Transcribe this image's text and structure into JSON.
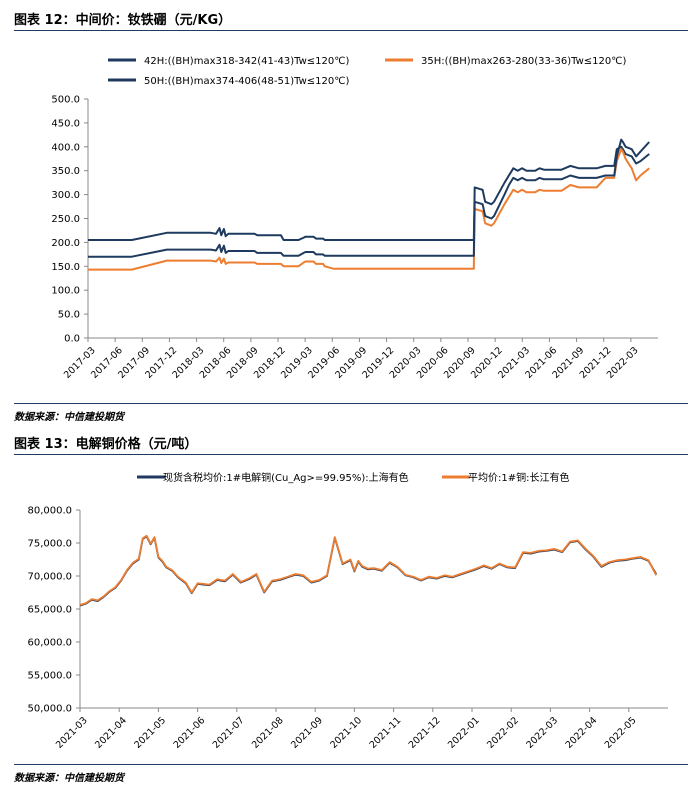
{
  "figure12": {
    "title": "图表 12：中间价：钕铁硼（元/KG）",
    "source": "数据来源：中信建投期货"
  },
  "figure13": {
    "title": "图表 13：电解铜价格（元/吨）",
    "source": "数据来源：中信建投期货"
  },
  "colors": {
    "navy": "#1f3a5f",
    "orange": "#ed7d31",
    "axis": "#888888"
  },
  "chart_data": [
    {
      "type": "line",
      "title": "中间价：钕铁硼（元/KG）",
      "ylim": [
        0,
        500
      ],
      "yticks": [
        0,
        50,
        100,
        150,
        200,
        250,
        300,
        350,
        400,
        450,
        500
      ],
      "ytick_labels": [
        "0.0",
        "50.0",
        "100.0",
        "150.0",
        "200.0",
        "250.0",
        "300.0",
        "350.0",
        "400.0",
        "450.0",
        "500.0"
      ],
      "xlim": [
        0,
        65
      ],
      "x_tick_labels": [
        "2017-03",
        "2017-06",
        "2017-09",
        "2017-12",
        "2018-03",
        "2018-06",
        "2018-09",
        "2018-12",
        "2019-03",
        "2019-06",
        "2019-09",
        "2019-12",
        "2020-03",
        "2020-06",
        "2020-09",
        "2020-12",
        "2021-03",
        "2021-06",
        "2021-09",
        "2021-12",
        "2022-03"
      ],
      "series": [
        {
          "name": "42H:((BH)max318-342(41-43)Tw≤120℃)",
          "color": "#1f3a5f",
          "x": [
            0,
            5,
            9,
            14,
            14.6,
            15,
            15.2,
            15.5,
            15.7,
            16,
            19,
            19.3,
            22,
            22.3,
            24,
            24.6,
            24.8,
            25.7,
            26,
            26.8,
            27,
            28,
            36,
            44,
            44.1,
            45,
            45.3,
            46,
            46.3,
            47.5,
            48,
            48.5,
            49,
            49.5,
            50,
            51,
            51.5,
            52,
            54,
            55,
            56,
            57,
            58,
            59,
            60,
            60.3,
            60.8,
            61,
            61.3,
            62,
            62.5,
            63,
            64
          ],
          "values": [
            205,
            205,
            220,
            220,
            218,
            230,
            215,
            228,
            213,
            218,
            218,
            215,
            215,
            205,
            205,
            210,
            212,
            212,
            208,
            208,
            205,
            205,
            205,
            205,
            315,
            310,
            285,
            280,
            285,
            325,
            340,
            355,
            350,
            355,
            350,
            350,
            355,
            352,
            352,
            360,
            355,
            355,
            355,
            360,
            360,
            395,
            400,
            395,
            385,
            380,
            365,
            370,
            385
          ]
        },
        {
          "name": "35H:((BH)max263-280(33-36)Tw≤120℃)",
          "color": "#ed7d31",
          "x": [
            0,
            5,
            9,
            14,
            14.6,
            15,
            15.2,
            15.5,
            15.7,
            16,
            19,
            19.3,
            22,
            22.3,
            24,
            24.6,
            24.8,
            25.7,
            26,
            26.8,
            27,
            28,
            36,
            44,
            44.1,
            45,
            45.3,
            46,
            46.3,
            47.5,
            48,
            48.5,
            49,
            49.5,
            50,
            51,
            51.5,
            52,
            54,
            55,
            56,
            57,
            58,
            59,
            60,
            60.3,
            60.8,
            61,
            61.3,
            62,
            62.5,
            63,
            64
          ],
          "values": [
            143,
            143,
            162,
            162,
            160,
            168,
            157,
            166,
            155,
            158,
            158,
            155,
            155,
            150,
            150,
            158,
            160,
            160,
            155,
            155,
            150,
            145,
            145,
            145,
            270,
            265,
            240,
            235,
            240,
            280,
            295,
            310,
            305,
            310,
            305,
            305,
            310,
            308,
            308,
            320,
            315,
            315,
            315,
            335,
            335,
            370,
            395,
            390,
            375,
            355,
            330,
            340,
            355
          ]
        },
        {
          "name": "50H:((BH)max374-406(48-51)Tw≤120℃)",
          "color": "#1f3a5f",
          "x": [
            0,
            5,
            9,
            14,
            14.6,
            15,
            15.2,
            15.5,
            15.7,
            16,
            19,
            19.3,
            22,
            22.3,
            24,
            24.6,
            24.8,
            25.7,
            26,
            26.8,
            27,
            28,
            36,
            44,
            44.1,
            45,
            45.3,
            46,
            46.3,
            47.5,
            48,
            48.5,
            49,
            49.5,
            50,
            51,
            51.5,
            52,
            54,
            55,
            56,
            57,
            58,
            59,
            60,
            60.3,
            60.8,
            61,
            61.3,
            62,
            62.5,
            63,
            64
          ],
          "values": [
            170,
            170,
            185,
            185,
            183,
            195,
            180,
            193,
            178,
            182,
            182,
            178,
            178,
            172,
            172,
            178,
            180,
            180,
            175,
            175,
            172,
            172,
            172,
            172,
            285,
            280,
            255,
            250,
            255,
            300,
            320,
            335,
            330,
            335,
            330,
            330,
            335,
            332,
            332,
            340,
            335,
            335,
            335,
            340,
            340,
            380,
            415,
            410,
            400,
            395,
            380,
            390,
            410
          ]
        }
      ]
    },
    {
      "type": "line",
      "title": "电解铜价格（元/吨）",
      "ylim": [
        50000,
        80000
      ],
      "yticks": [
        50000,
        55000,
        60000,
        65000,
        70000,
        75000,
        80000
      ],
      "ytick_labels": [
        "50,000.0",
        "55,000.0",
        "60,000.0",
        "65,000.0",
        "70,000.0",
        "75,000.0",
        "80,000.0"
      ],
      "xlim": [
        0,
        15
      ],
      "x_tick_labels": [
        "2021-03",
        "2021-04",
        "2021-05",
        "2021-06",
        "2021-07",
        "2021-08",
        "2021-09",
        "2021-10",
        "2021-11",
        "2021-12",
        "2022-01",
        "2022-02",
        "2022-03",
        "2022-04",
        "2022-05"
      ],
      "series": [
        {
          "name": "现货含税均价:1#电解铜(Cu_Ag>=99.95%):上海有色",
          "color": "#1f3a5f",
          "x": [
            0,
            0.15,
            0.3,
            0.45,
            0.6,
            0.75,
            0.9,
            1.05,
            1.2,
            1.35,
            1.5,
            1.6,
            1.7,
            1.8,
            1.9,
            2.0,
            2.1,
            2.2,
            2.35,
            2.5,
            2.7,
            2.85,
            3.0,
            3.15,
            3.3,
            3.5,
            3.7,
            3.9,
            4.1,
            4.3,
            4.5,
            4.7,
            4.9,
            5.1,
            5.3,
            5.5,
            5.7,
            5.9,
            6.1,
            6.3,
            6.5,
            6.7,
            6.9,
            7.0,
            7.1,
            7.2,
            7.35,
            7.5,
            7.7,
            7.9,
            8.1,
            8.3,
            8.5,
            8.7,
            8.9,
            9.1,
            9.3,
            9.5,
            9.7,
            9.9,
            10.1,
            10.3,
            10.5,
            10.7,
            10.9,
            11.1,
            11.3,
            11.5,
            11.7,
            11.9,
            12.1,
            12.3,
            12.5,
            12.7,
            12.9,
            13.1,
            13.3,
            13.5,
            13.7,
            13.9,
            14.1,
            14.3,
            14.5,
            14.7
          ],
          "values": [
            65500,
            65800,
            66400,
            66200,
            66800,
            67600,
            68200,
            69300,
            70800,
            71900,
            72500,
            75600,
            76000,
            74800,
            75800,
            72800,
            72200,
            71300,
            70800,
            69800,
            68900,
            67400,
            68800,
            68700,
            68600,
            69400,
            69200,
            70200,
            69000,
            69500,
            70200,
            67500,
            69200,
            69400,
            69800,
            70200,
            70000,
            69000,
            69300,
            70000,
            75800,
            71800,
            72400,
            70700,
            72200,
            71400,
            71000,
            71100,
            70800,
            72000,
            71300,
            70100,
            69800,
            69300,
            69800,
            69600,
            70000,
            69800,
            70200,
            70600,
            71000,
            71500,
            71100,
            71800,
            71300,
            71200,
            73500,
            73400,
            73700,
            73800,
            74000,
            73600,
            75100,
            75300,
            74000,
            72900,
            71400,
            72000,
            72300,
            72400,
            72600,
            72800,
            72300,
            70300
          ]
        },
        {
          "name": "平均价:1#铜:长江有色",
          "color": "#ed7d31",
          "x": [
            0,
            0.15,
            0.3,
            0.45,
            0.6,
            0.75,
            0.9,
            1.05,
            1.2,
            1.35,
            1.5,
            1.6,
            1.7,
            1.8,
            1.9,
            2.0,
            2.1,
            2.2,
            2.35,
            2.5,
            2.7,
            2.85,
            3.0,
            3.15,
            3.3,
            3.5,
            3.7,
            3.9,
            4.1,
            4.3,
            4.5,
            4.7,
            4.9,
            5.1,
            5.3,
            5.5,
            5.7,
            5.9,
            6.1,
            6.3,
            6.5,
            6.7,
            6.9,
            7.0,
            7.1,
            7.2,
            7.35,
            7.5,
            7.7,
            7.9,
            8.1,
            8.3,
            8.5,
            8.7,
            8.9,
            9.1,
            9.3,
            9.5,
            9.7,
            9.9,
            10.1,
            10.3,
            10.5,
            10.7,
            10.9,
            11.1,
            11.3,
            11.5,
            11.7,
            11.9,
            12.1,
            12.3,
            12.5,
            12.7,
            12.9,
            13.1,
            13.3,
            13.5,
            13.7,
            13.9,
            14.1,
            14.3,
            14.5,
            14.7
          ],
          "values": [
            65600,
            65900,
            66500,
            66300,
            66900,
            67700,
            68300,
            69400,
            70900,
            72000,
            72600,
            75700,
            76100,
            74900,
            75900,
            72900,
            72300,
            71400,
            70900,
            69900,
            69000,
            67500,
            68900,
            68800,
            68700,
            69500,
            69300,
            70300,
            69100,
            69600,
            70300,
            67600,
            69300,
            69500,
            69900,
            70300,
            70100,
            69100,
            69400,
            70100,
            75900,
            71900,
            72500,
            70800,
            72300,
            71500,
            71100,
            71200,
            70900,
            72100,
            71400,
            70200,
            69900,
            69400,
            69900,
            69700,
            70100,
            69900,
            70300,
            70700,
            71100,
            71600,
            71200,
            71900,
            71400,
            71300,
            73600,
            73500,
            73800,
            73900,
            74100,
            73700,
            75200,
            75400,
            74100,
            73000,
            71500,
            72100,
            72400,
            72500,
            72700,
            72900,
            72400,
            70100
          ]
        }
      ]
    }
  ]
}
